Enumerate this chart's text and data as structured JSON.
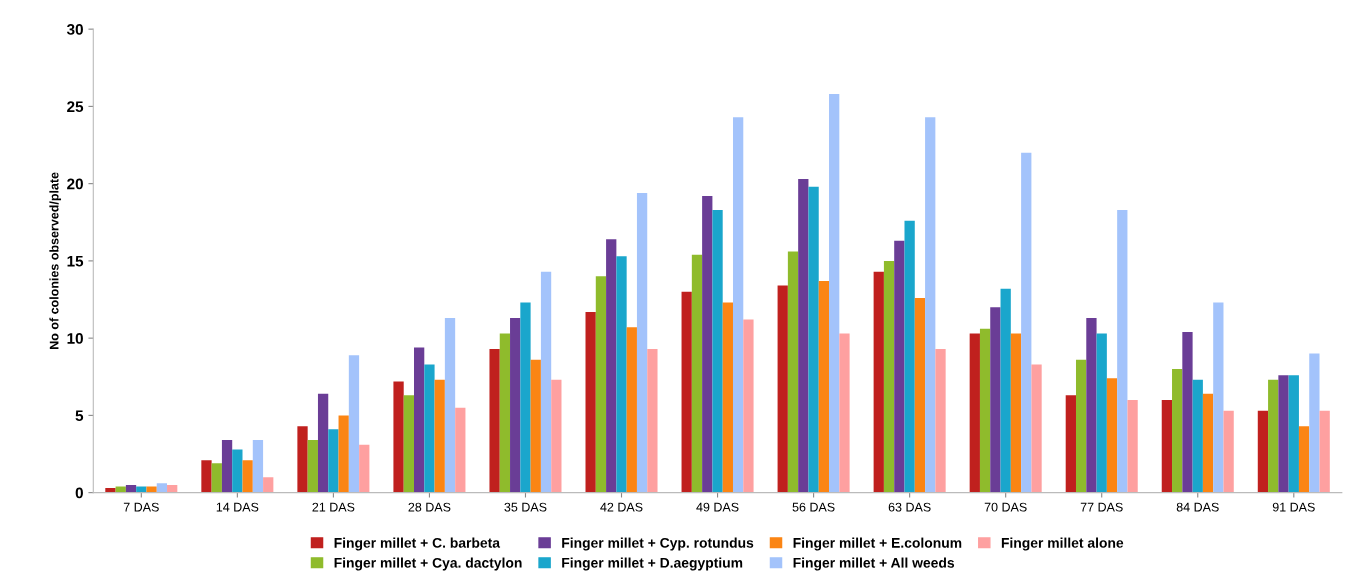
{
  "chart_data": {
    "type": "bar",
    "ylabel": "No of colonies observed/plate",
    "categories": [
      "7 DAS",
      "14 DAS",
      "21 DAS",
      "28 DAS",
      "35 DAS",
      "42 DAS",
      "49 DAS",
      "56 DAS",
      "63 DAS",
      "70 DAS",
      "77 DAS",
      "84 DAS",
      "91 DAS"
    ],
    "series": [
      {
        "name": "Finger millet + C. barbeta",
        "color": "#c0201e",
        "values": [
          0.3,
          2.1,
          4.3,
          7.2,
          9.3,
          11.7,
          13.0,
          13.4,
          14.3,
          10.3,
          6.3,
          6.0,
          5.3
        ]
      },
      {
        "name": "Finger millet + Cya. dactylon",
        "color": "#8fbb2c",
        "values": [
          0.4,
          1.9,
          3.4,
          6.3,
          10.3,
          14.0,
          15.4,
          15.6,
          15.0,
          10.6,
          8.6,
          8.0,
          7.3
        ]
      },
      {
        "name": "Finger millet + Cyp. rotundus",
        "color": "#6a3d96",
        "values": [
          0.5,
          3.4,
          6.4,
          9.4,
          11.3,
          16.4,
          19.2,
          20.3,
          16.3,
          12.0,
          11.3,
          10.4,
          7.6
        ]
      },
      {
        "name": "Finger millet + D.aegyptium",
        "color": "#1aa6cc",
        "values": [
          0.4,
          2.8,
          4.1,
          8.3,
          12.3,
          15.3,
          18.3,
          19.8,
          17.6,
          13.2,
          10.3,
          7.3,
          7.6
        ]
      },
      {
        "name": "Finger millet + E.colonum",
        "color": "#fb8514",
        "values": [
          0.4,
          2.1,
          5.0,
          7.3,
          8.6,
          10.7,
          12.3,
          13.7,
          12.6,
          10.3,
          7.4,
          6.4,
          4.3
        ]
      },
      {
        "name": "Finger millet + All weeds",
        "color": "#a3c3fb",
        "values": [
          0.6,
          3.4,
          8.9,
          11.3,
          14.3,
          19.4,
          24.3,
          25.8,
          24.3,
          22.0,
          18.3,
          12.3,
          9.0
        ]
      },
      {
        "name": "Finger millet alone",
        "color": "#fea0a0",
        "values": [
          0.5,
          1.0,
          3.1,
          5.5,
          7.3,
          9.3,
          11.2,
          10.3,
          9.3,
          8.3,
          6.0,
          5.3,
          5.3
        ]
      }
    ],
    "ylim": [
      0,
      30
    ],
    "yticks": [
      0,
      5,
      10,
      15,
      20,
      25,
      30
    ],
    "grid": false,
    "legend": "bottom"
  }
}
